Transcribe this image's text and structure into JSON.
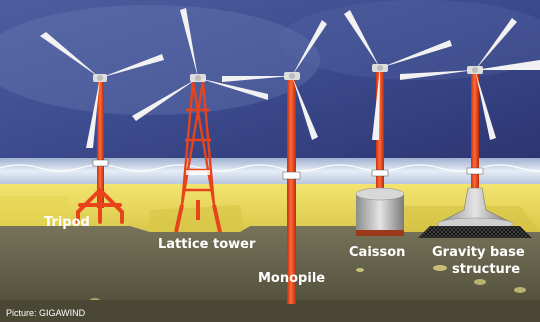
{
  "foundations": [
    {
      "id": "tripod",
      "label": "Tripod"
    },
    {
      "id": "lattice",
      "label": "Lattice tower"
    },
    {
      "id": "monopile",
      "label": "Monopile"
    },
    {
      "id": "caisson",
      "label": "Caisson"
    },
    {
      "id": "gravity",
      "label_line1": "Gravity base",
      "label_line2": "structure"
    }
  ],
  "credit": "Picture: GIGAWIND",
  "colors": {
    "sky": "#3a4a8a",
    "sea": "#c7d4e6",
    "sand": "#e8d85a",
    "seabed": "#6e6a52",
    "tower": "#e8441c",
    "blade": "#f2f2f2"
  }
}
